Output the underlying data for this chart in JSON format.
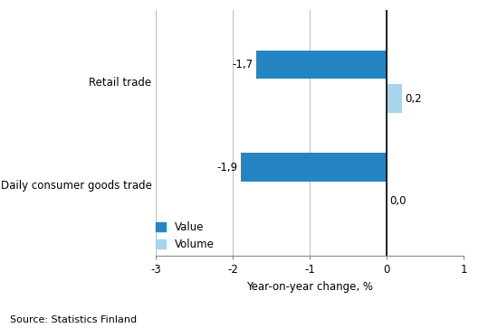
{
  "categories": [
    "Daily consumer goods trade",
    "Retail trade"
  ],
  "value_data": [
    -1.9,
    -1.7
  ],
  "volume_data": [
    0.0,
    0.2
  ],
  "value_color": "#2585C2",
  "volume_color": "#A8D4EE",
  "bar_height": 0.28,
  "bar_gap": 0.05,
  "xlim": [
    -3,
    1
  ],
  "xticks": [
    -3,
    -2,
    -1,
    0,
    1
  ],
  "xlabel": "Year-on-year change, %",
  "value_labels": [
    "-1,9",
    "-1,7"
  ],
  "volume_labels": [
    "0,0",
    "0,2"
  ],
  "legend_value": "Value",
  "legend_volume": "Volume",
  "source_text": "Source: Statistics Finland",
  "ylim": [
    -0.7,
    1.7
  ]
}
